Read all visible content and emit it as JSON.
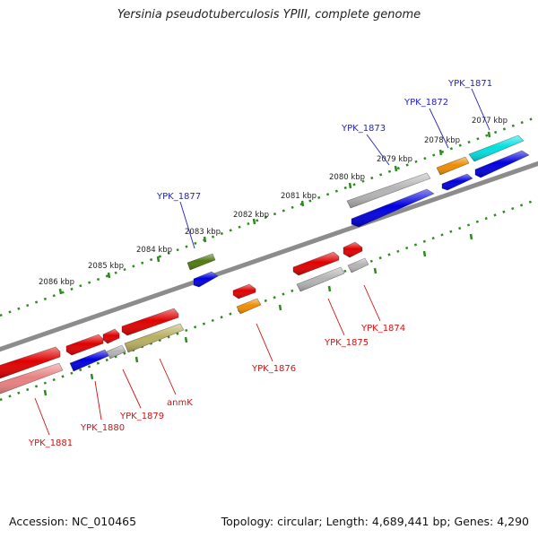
{
  "title": "Yersinia pseudotuberculosis YPIII, complete genome",
  "footer": {
    "accession": "Accession: NC_010465",
    "summary": "Topology: circular; Length: 4,689,441 bp; Genes: 4,290"
  },
  "scale_labels": [
    "2077 kbp",
    "2078 kbp",
    "2079 kbp",
    "2080 kbp",
    "2081 kbp",
    "2082 kbp",
    "2083 kbp",
    "2084 kbp",
    "2085 kbp",
    "2086 kbp"
  ],
  "genes": [
    {
      "name": "YPK_1871",
      "strand": "forward"
    },
    {
      "name": "YPK_1872",
      "strand": "forward"
    },
    {
      "name": "YPK_1873",
      "strand": "forward"
    },
    {
      "name": "YPK_1877",
      "strand": "forward"
    },
    {
      "name": "YPK_1874",
      "strand": "reverse"
    },
    {
      "name": "YPK_1875",
      "strand": "reverse"
    },
    {
      "name": "YPK_1876",
      "strand": "reverse"
    },
    {
      "name": "anmK",
      "strand": "reverse"
    },
    {
      "name": "YPK_1879",
      "strand": "reverse"
    },
    {
      "name": "YPK_1880",
      "strand": "reverse"
    },
    {
      "name": "YPK_1881",
      "strand": "reverse"
    }
  ],
  "colors": {
    "forward_label": "#1f1fbf",
    "reverse_label": "#d41010",
    "scale_dots": "#2e8b1e",
    "backbone": "#8c8c8c",
    "red": "#e00000",
    "blue": "#0000e0",
    "orange": "#f08c00",
    "gray": "#b4b4b4",
    "olive": "#4f7a10",
    "khaki": "#b8b060",
    "cyan": "#00e0e0",
    "pink": "#e88080"
  }
}
